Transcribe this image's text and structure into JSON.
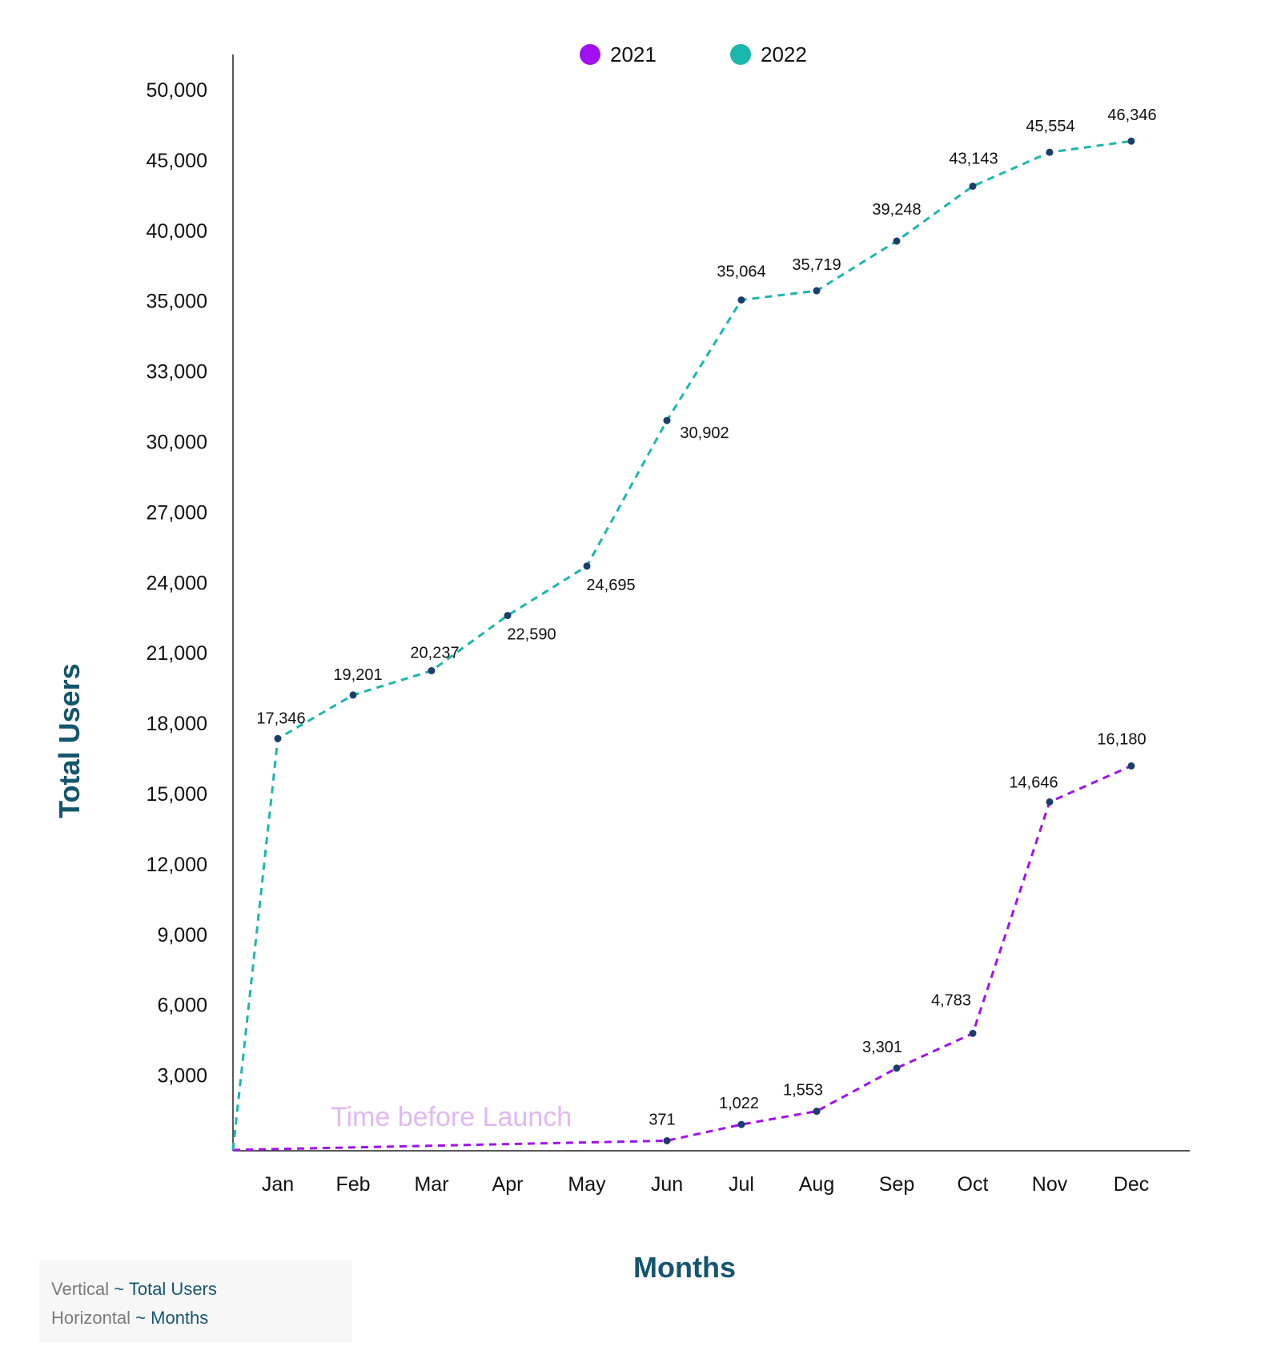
{
  "chart_data": {
    "type": "line",
    "title": "",
    "xlabel": "Months",
    "ylabel": "Total Users",
    "categories": [
      "Jan",
      "Feb",
      "Mar",
      "Apr",
      "May",
      "Jun",
      "Jul",
      "Aug",
      "Sep",
      "Oct",
      "Nov",
      "Dec"
    ],
    "y_ticks": [
      "3,000",
      "6,000",
      "9,000",
      "12,000",
      "15,000",
      "18,000",
      "21,000",
      "24,000",
      "27,000",
      "30,000",
      "33,000",
      "35,000",
      "40,000",
      "45,000",
      "50,000"
    ],
    "legend": {
      "placement": "top-center",
      "entries": [
        "2021",
        "2022"
      ]
    },
    "grid": false,
    "line_style": "dashed",
    "series": [
      {
        "name": "2021",
        "color": "#a010f0",
        "values": [
          0,
          0,
          0,
          0,
          0,
          371,
          1022,
          1553,
          3301,
          4783,
          14646,
          16180
        ],
        "labels": [
          "",
          "",
          "",
          "",
          "",
          "371",
          "1,022",
          "1,553",
          "3,301",
          "4,783",
          "14,646",
          "16,180"
        ]
      },
      {
        "name": "2022",
        "color": "#1ab7ac",
        "values": [
          17346,
          19201,
          20237,
          22590,
          24695,
          30902,
          35064,
          35719,
          39248,
          43143,
          45554,
          46346
        ],
        "labels": [
          "17,346",
          "19,201",
          "20,237",
          "22,590",
          "24,695",
          "30,902",
          "35,064",
          "35,719",
          "39,248",
          "43,143",
          "45,554",
          "46,346"
        ]
      }
    ],
    "annotations": [
      "Time before Launch"
    ],
    "marker_color": "#1b3f6b",
    "axis_title_color": "#15566f"
  },
  "note": {
    "vertical_key": "Vertical",
    "vertical_value": "~ Total Users",
    "horizontal_key": "Horizontal",
    "horizontal_value": "~ Months"
  }
}
